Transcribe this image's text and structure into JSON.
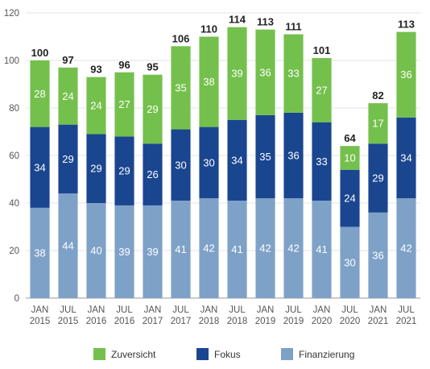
{
  "chart_data": {
    "type": "bar",
    "stacked": true,
    "categories": [
      [
        "JAN",
        "2015"
      ],
      [
        "JUL",
        "2015"
      ],
      [
        "JAN",
        "2016"
      ],
      [
        "JUL",
        "2016"
      ],
      [
        "JAN",
        "2017"
      ],
      [
        "JUL",
        "2017"
      ],
      [
        "JAN",
        "2018"
      ],
      [
        "JUL",
        "2018"
      ],
      [
        "JAN",
        "2019"
      ],
      [
        "JUL",
        "2019"
      ],
      [
        "JAN",
        "2020"
      ],
      [
        "JUL",
        "2020"
      ],
      [
        "JAN",
        "2021"
      ],
      [
        "JUL",
        "2021"
      ]
    ],
    "series": [
      {
        "name": "Finanzierung",
        "color": "#7ea1c8",
        "values": [
          38,
          44,
          40,
          39,
          39,
          41,
          42,
          41,
          42,
          42,
          41,
          30,
          36,
          42
        ]
      },
      {
        "name": "Fokus",
        "color": "#1a4690",
        "values": [
          34,
          29,
          29,
          29,
          26,
          30,
          30,
          34,
          35,
          36,
          33,
          24,
          29,
          34
        ]
      },
      {
        "name": "Zuversicht",
        "color": "#74c04c",
        "values": [
          28,
          24,
          24,
          27,
          29,
          35,
          38,
          39,
          36,
          33,
          27,
          10,
          17,
          36
        ]
      }
    ],
    "totals": [
      100,
      97,
      93,
      96,
      95,
      106,
      110,
      114,
      113,
      111,
      101,
      64,
      82,
      113
    ],
    "yticks": [
      0,
      20,
      40,
      60,
      80,
      100,
      120
    ],
    "ylim": [
      0,
      120
    ],
    "grid": true,
    "legend_position": "bottom",
    "legend_order": [
      "Zuversicht",
      "Fokus",
      "Finanzierung"
    ],
    "title": "",
    "xlabel": "",
    "ylabel": ""
  }
}
